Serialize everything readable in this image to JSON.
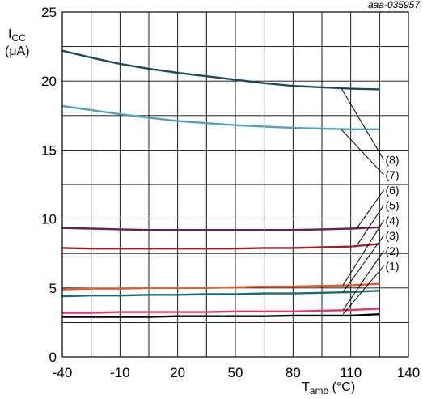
{
  "chart_data": {
    "type": "line",
    "doc_id": "aaa-035957",
    "title": "",
    "ylabel_main": "I",
    "ylabel_sub": "CC",
    "ylabel_unit": "(μA)",
    "xlabel_main": "T",
    "xlabel_sub": "amb",
    "xlabel_unit": " (°C)",
    "xlim": [
      -40,
      140
    ],
    "ylim": [
      0,
      25
    ],
    "x_ticks": [
      "-40",
      "-10",
      "20",
      "50",
      "80",
      "110",
      "140"
    ],
    "y_ticks": [
      "0",
      "5",
      "10",
      "15",
      "20",
      "25"
    ],
    "x_tick_values": [
      -40,
      -10,
      20,
      50,
      80,
      110,
      140
    ],
    "y_tick_values": [
      0,
      5,
      10,
      15,
      20,
      25
    ],
    "grid": true,
    "x_grid_step": 15,
    "y_grid_step": 2.5,
    "x": [
      -40,
      -25,
      -10,
      5,
      20,
      35,
      50,
      65,
      80,
      95,
      110,
      125
    ],
    "series": [
      {
        "name": "(1)",
        "color": "#000000",
        "values": [
          2.9,
          2.9,
          2.9,
          2.9,
          2.95,
          2.95,
          2.95,
          2.95,
          3.0,
          3.0,
          3.0,
          3.1
        ]
      },
      {
        "name": "(2)",
        "color": "#e8336e",
        "values": [
          3.2,
          3.2,
          3.25,
          3.25,
          3.25,
          3.25,
          3.3,
          3.3,
          3.3,
          3.35,
          3.4,
          3.5
        ]
      },
      {
        "name": "(3)",
        "color": "#1a6b72",
        "values": [
          4.4,
          4.45,
          4.45,
          4.5,
          4.5,
          4.55,
          4.55,
          4.6,
          4.6,
          4.65,
          4.7,
          4.8
        ]
      },
      {
        "name": "(4)",
        "color": "#e55a2b",
        "values": [
          4.9,
          4.95,
          4.95,
          5.0,
          5.0,
          5.0,
          5.05,
          5.1,
          5.1,
          5.15,
          5.2,
          5.3
        ]
      },
      {
        "name": "(5)",
        "color": "#a01c30",
        "values": [
          7.9,
          7.85,
          7.85,
          7.85,
          7.85,
          7.85,
          7.85,
          7.9,
          7.9,
          7.95,
          8.0,
          8.2
        ]
      },
      {
        "name": "(6)",
        "color": "#6b1f52",
        "values": [
          9.35,
          9.3,
          9.25,
          9.2,
          9.2,
          9.2,
          9.2,
          9.2,
          9.2,
          9.25,
          9.3,
          9.4
        ]
      },
      {
        "name": "(7)",
        "color": "#4ea3b5",
        "values": [
          18.2,
          17.9,
          17.6,
          17.35,
          17.1,
          16.95,
          16.8,
          16.7,
          16.6,
          16.55,
          16.5,
          16.5
        ]
      },
      {
        "name": "(8)",
        "color": "#1c4d57",
        "values": [
          22.2,
          21.7,
          21.25,
          20.9,
          20.6,
          20.35,
          20.1,
          19.85,
          19.65,
          19.55,
          19.45,
          19.4
        ]
      }
    ],
    "callouts": [
      {
        "label": "(8)",
        "series": "(8)",
        "at_x": 105,
        "at_y": 19.5,
        "label_x": 128,
        "label_y": 14.3
      },
      {
        "label": "(7)",
        "series": "(7)",
        "at_x": 105,
        "at_y": 16.5,
        "label_x": 128,
        "label_y": 13.2
      },
      {
        "label": "(6)",
        "series": "(6)",
        "at_x": 113,
        "at_y": 9.3,
        "label_x": 128,
        "label_y": 12.1
      },
      {
        "label": "(5)",
        "series": "(5)",
        "at_x": 113,
        "at_y": 8.05,
        "label_x": 128,
        "label_y": 11.0
      },
      {
        "label": "(4)",
        "series": "(4)",
        "at_x": 106,
        "at_y": 5.2,
        "label_x": 128,
        "label_y": 9.9
      },
      {
        "label": "(3)",
        "series": "(3)",
        "at_x": 106,
        "at_y": 4.7,
        "label_x": 128,
        "label_y": 8.8
      },
      {
        "label": "(2)",
        "series": "(2)",
        "at_x": 106,
        "at_y": 3.4,
        "label_x": 128,
        "label_y": 7.7
      },
      {
        "label": "(1)",
        "series": "(1)",
        "at_x": 106,
        "at_y": 3.1,
        "label_x": 128,
        "label_y": 6.6
      }
    ]
  }
}
